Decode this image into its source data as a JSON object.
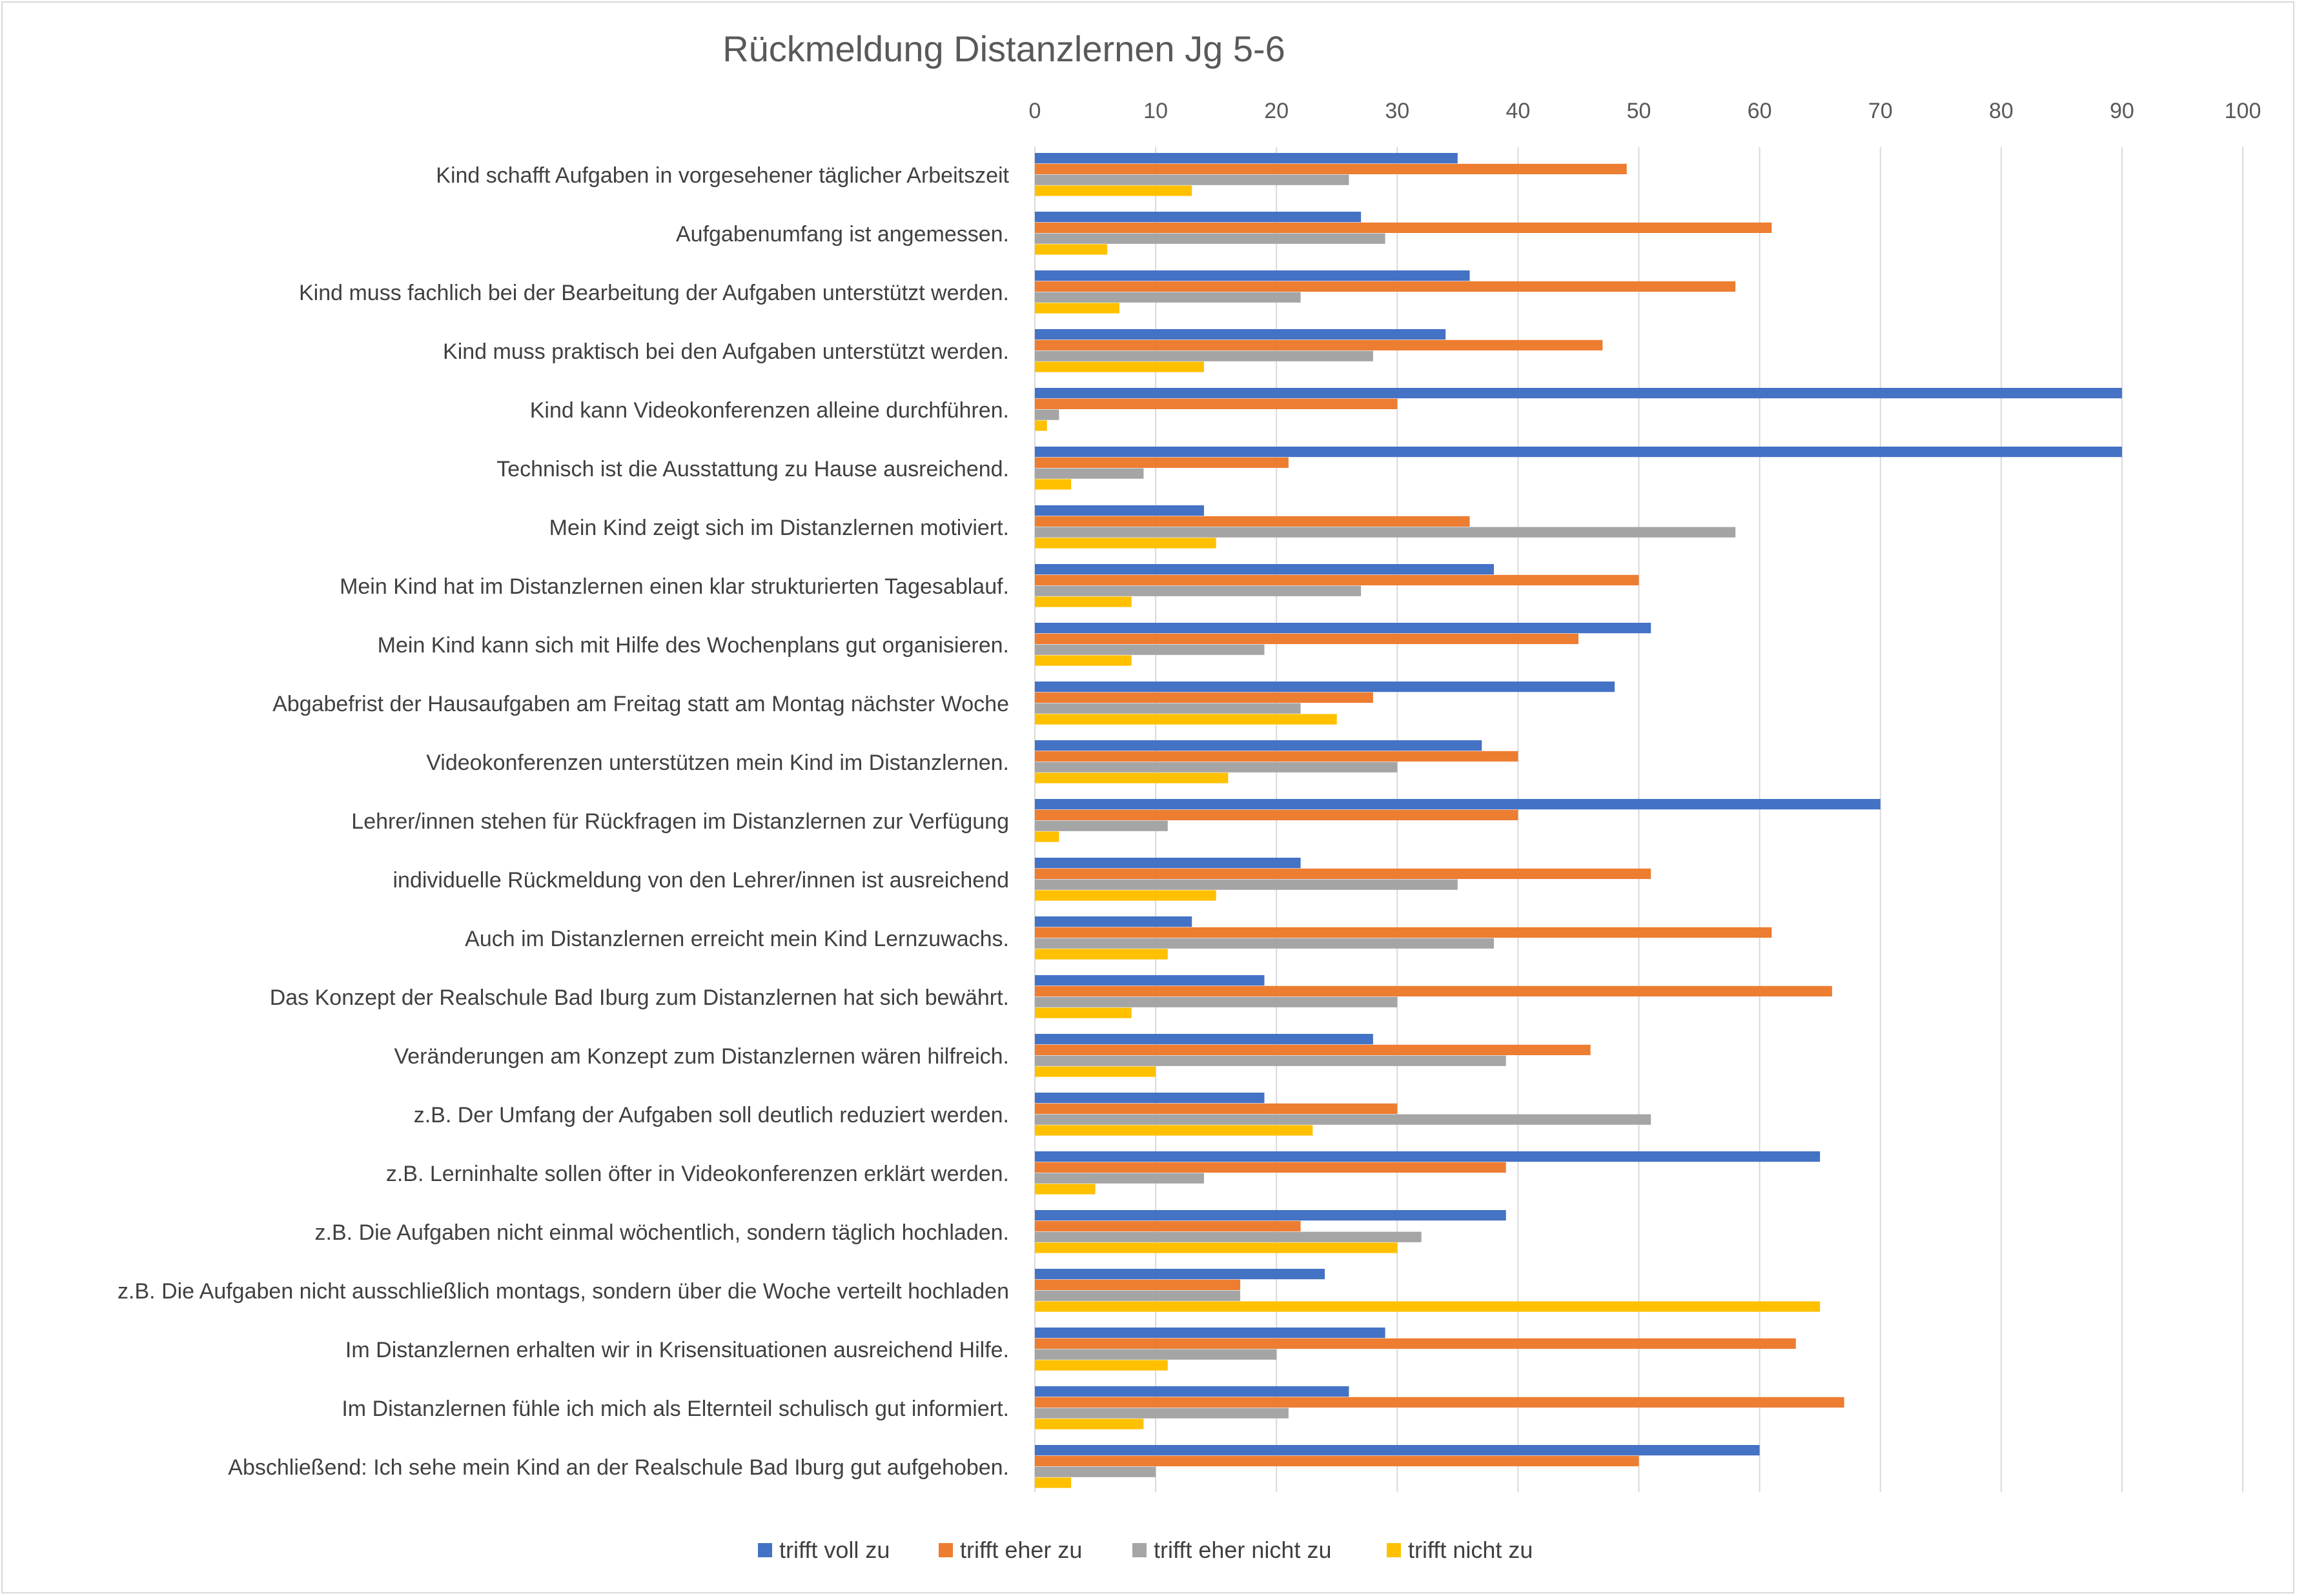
{
  "chart_data": {
    "type": "bar",
    "orientation": "horizontal",
    "title": "Rückmeldung Distanzlernen Jg 5-6",
    "xlim": [
      0,
      100
    ],
    "x_ticks": [
      0,
      10,
      20,
      30,
      40,
      50,
      60,
      70,
      80,
      90,
      100
    ],
    "x_axis_position": "top",
    "grid": true,
    "legend_position": "bottom",
    "categories": [
      "Kind schafft Aufgaben in vorgesehener täglicher Arbeitszeit",
      "Aufgabenumfang ist angemessen.",
      "Kind muss fachlich bei der Bearbeitung der Aufgaben unterstützt werden.",
      "Kind muss praktisch bei den Aufgaben unterstützt werden.",
      "Kind kann Videokonferenzen alleine durchführen.",
      "Technisch ist die Ausstattung zu Hause ausreichend.",
      "Mein Kind zeigt sich im Distanzlernen motiviert.",
      "Mein Kind hat im Distanzlernen einen klar strukturierten Tagesablauf.",
      "Mein Kind kann sich mit Hilfe des Wochenplans gut organisieren.",
      "Abgabefrist der Hausaufgaben am Freitag statt am Montag nächster Woche",
      "Videokonferenzen unterstützen mein Kind im Distanzlernen.",
      "Lehrer/innen stehen für Rückfragen im Distanzlernen zur Verfügung",
      "individuelle Rückmeldung von den Lehrer/innen ist ausreichend",
      "Auch im Distanzlernen erreicht mein Kind Lernzuwachs.",
      "Das Konzept der Realschule Bad Iburg zum Distanzlernen hat sich bewährt.",
      "Veränderungen am Konzept zum Distanzlernen wären hilfreich.",
      "z.B. Der Umfang der Aufgaben soll deutlich reduziert werden.",
      "z.B. Lerninhalte sollen öfter in Videokonferenzen erklärt werden.",
      "z.B. Die Aufgaben nicht einmal wöchentlich, sondern täglich hochladen.",
      "z.B. Die Aufgaben nicht ausschließlich montags, sondern über die Woche verteilt hochladen",
      "Im Distanzlernen erhalten wir in Krisensituationen ausreichend Hilfe.",
      "Im Distanzlernen fühle ich mich als Elternteil schulisch gut informiert.",
      "Abschließend: Ich sehe mein Kind an der Realschule Bad Iburg gut aufgehoben."
    ],
    "series": [
      {
        "name": "trifft voll zu",
        "color": "#4472c4",
        "values": [
          35,
          27,
          36,
          34,
          90,
          90,
          14,
          38,
          51,
          48,
          37,
          70,
          22,
          13,
          19,
          28,
          19,
          65,
          39,
          24,
          29,
          26,
          60
        ]
      },
      {
        "name": "trifft eher zu",
        "color": "#ed7d31",
        "values": [
          49,
          61,
          58,
          47,
          30,
          21,
          36,
          50,
          45,
          28,
          40,
          40,
          51,
          61,
          66,
          46,
          30,
          39,
          22,
          17,
          63,
          67,
          50
        ]
      },
      {
        "name": "trifft eher nicht zu",
        "color": "#a5a5a5",
        "values": [
          26,
          29,
          22,
          28,
          2,
          9,
          58,
          27,
          19,
          22,
          30,
          11,
          35,
          38,
          30,
          39,
          51,
          14,
          32,
          17,
          20,
          21,
          10
        ]
      },
      {
        "name": "trifft nicht zu",
        "color": "#ffc000",
        "values": [
          13,
          6,
          7,
          14,
          1,
          3,
          15,
          8,
          8,
          25,
          16,
          2,
          15,
          11,
          8,
          10,
          23,
          5,
          30,
          65,
          11,
          9,
          3
        ]
      }
    ]
  }
}
